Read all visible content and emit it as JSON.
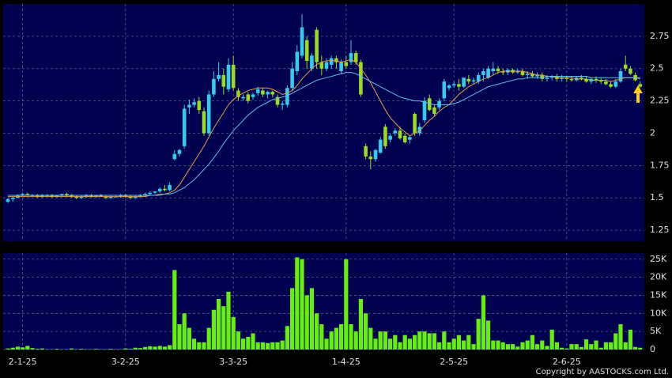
{
  "chart_data": {
    "type": "candlestick",
    "categories": [
      null,
      null,
      null,
      "2-1-25",
      null,
      null,
      null,
      null,
      null,
      null,
      null,
      null,
      null,
      null,
      null,
      null,
      null,
      null,
      null,
      null,
      null,
      null,
      null,
      null,
      "3-2-25",
      null,
      null,
      null,
      null,
      null,
      null,
      null,
      null,
      null,
      null,
      null,
      null,
      null,
      null,
      null,
      null,
      null,
      null,
      null,
      null,
      null,
      "3-3-25",
      null,
      null,
      null,
      null,
      null,
      null,
      null,
      null,
      null,
      null,
      null,
      null,
      null,
      null,
      null,
      null,
      null,
      null,
      null,
      null,
      null,
      null,
      "1-4-25",
      null,
      null,
      null,
      null,
      null,
      null,
      null,
      null,
      null,
      null,
      null,
      null,
      null,
      null,
      null,
      null,
      null,
      null,
      null,
      null,
      null,
      "2-5-25",
      null,
      null,
      null,
      null,
      null,
      null,
      null,
      null,
      null,
      null,
      null,
      null,
      null,
      null,
      null,
      null,
      null,
      null,
      null,
      null,
      null,
      null,
      "2-6-25",
      null,
      null,
      null,
      null,
      null,
      null,
      null,
      null,
      null,
      null,
      null,
      null,
      null,
      null,
      null
    ],
    "open": [
      1.47,
      1.49,
      1.5,
      1.52,
      1.53,
      1.52,
      1.52,
      1.51,
      1.52,
      1.52,
      1.51,
      1.52,
      1.53,
      1.52,
      1.51,
      1.5,
      1.51,
      1.52,
      1.51,
      1.52,
      1.51,
      1.5,
      1.51,
      1.51,
      1.52,
      1.51,
      1.5,
      1.51,
      1.52,
      1.53,
      1.54,
      1.55,
      1.57,
      1.56,
      1.8,
      1.84,
      1.9,
      2.2,
      2.22,
      2.25,
      2.17,
      2.0,
      2.3,
      2.42,
      2.45,
      2.34,
      2.53,
      2.33,
      2.27,
      2.3,
      2.28,
      2.31,
      2.33,
      2.3,
      2.32,
      2.28,
      2.22,
      2.22,
      2.35,
      2.48,
      2.6,
      2.72,
      2.5,
      2.8,
      2.55,
      2.5,
      2.53,
      2.58,
      2.48,
      2.55,
      2.55,
      2.62,
      2.55,
      1.9,
      1.82,
      1.8,
      1.85,
      2.05,
      1.95,
      2.0,
      2.02,
      1.98,
      1.95,
      2.15,
      2.0,
      2.1,
      2.27,
      2.2,
      2.2,
      2.27,
      2.35,
      2.37,
      2.38,
      2.36,
      2.42,
      2.4,
      2.4,
      2.45,
      2.43,
      2.48,
      2.5,
      2.48,
      2.47,
      2.49,
      2.47,
      2.48,
      2.45,
      2.46,
      2.44,
      2.45,
      2.42,
      2.43,
      2.44,
      2.42,
      2.43,
      2.42,
      2.41,
      2.43,
      2.42,
      2.4,
      2.42,
      2.41,
      2.4,
      2.38,
      2.36,
      2.4,
      2.53,
      2.5,
      2.45,
      2.38
    ],
    "high": [
      1.5,
      1.51,
      1.53,
      1.54,
      1.54,
      1.53,
      1.53,
      1.53,
      1.53,
      1.53,
      1.52,
      1.53,
      1.54,
      1.53,
      1.52,
      1.52,
      1.53,
      1.53,
      1.52,
      1.53,
      1.52,
      1.52,
      1.52,
      1.53,
      1.53,
      1.52,
      1.52,
      1.53,
      1.54,
      1.55,
      1.55,
      1.58,
      1.6,
      1.62,
      1.87,
      1.88,
      2.22,
      2.26,
      2.27,
      2.28,
      2.2,
      2.33,
      2.48,
      2.55,
      2.5,
      2.58,
      2.6,
      2.35,
      2.3,
      2.32,
      2.31,
      2.36,
      2.35,
      2.33,
      2.33,
      2.3,
      2.25,
      2.37,
      2.55,
      2.68,
      2.92,
      2.75,
      2.62,
      2.82,
      2.6,
      2.58,
      2.6,
      2.6,
      2.57,
      2.6,
      2.72,
      2.64,
      2.57,
      1.92,
      1.86,
      1.88,
      1.97,
      2.07,
      2.0,
      2.04,
      2.05,
      2.0,
      1.98,
      2.16,
      2.08,
      2.28,
      2.3,
      2.22,
      2.27,
      2.42,
      2.38,
      2.4,
      2.42,
      2.43,
      2.45,
      2.43,
      2.47,
      2.5,
      2.52,
      2.55,
      2.52,
      2.5,
      2.5,
      2.5,
      2.5,
      2.5,
      2.48,
      2.48,
      2.47,
      2.47,
      2.45,
      2.45,
      2.46,
      2.45,
      2.44,
      2.44,
      2.44,
      2.45,
      2.44,
      2.43,
      2.44,
      2.43,
      2.42,
      2.4,
      2.42,
      2.5,
      2.6,
      2.52,
      2.47,
      2.4
    ],
    "low": [
      1.46,
      1.47,
      1.5,
      1.51,
      1.52,
      1.51,
      1.5,
      1.5,
      1.51,
      1.5,
      1.5,
      1.51,
      1.51,
      1.5,
      1.49,
      1.49,
      1.5,
      1.5,
      1.5,
      1.51,
      1.49,
      1.49,
      1.5,
      1.5,
      1.5,
      1.49,
      1.49,
      1.5,
      1.51,
      1.52,
      1.53,
      1.54,
      1.55,
      1.55,
      1.79,
      1.82,
      1.88,
      2.15,
      2.2,
      2.15,
      1.98,
      1.98,
      2.28,
      2.4,
      2.3,
      2.32,
      2.33,
      2.25,
      2.25,
      2.23,
      2.26,
      2.29,
      2.28,
      2.27,
      2.28,
      2.2,
      2.18,
      2.2,
      2.33,
      2.45,
      2.58,
      2.5,
      2.48,
      2.5,
      2.45,
      2.48,
      2.5,
      2.5,
      2.46,
      2.5,
      2.53,
      2.53,
      2.28,
      1.8,
      1.72,
      1.78,
      1.84,
      1.88,
      1.93,
      1.98,
      1.95,
      1.92,
      1.92,
      1.98,
      1.98,
      2.08,
      2.17,
      2.13,
      2.18,
      2.25,
      2.33,
      2.35,
      2.33,
      2.35,
      2.38,
      2.38,
      2.38,
      2.4,
      2.42,
      2.45,
      2.46,
      2.45,
      2.45,
      2.46,
      2.46,
      2.44,
      2.42,
      2.43,
      2.42,
      2.4,
      2.4,
      2.41,
      2.4,
      2.4,
      2.4,
      2.4,
      2.4,
      2.41,
      2.39,
      2.38,
      2.39,
      2.38,
      2.37,
      2.35,
      2.35,
      2.39,
      2.48,
      2.45,
      2.4,
      2.35
    ],
    "close": [
      1.49,
      1.5,
      1.52,
      1.53,
      1.52,
      1.52,
      1.51,
      1.52,
      1.52,
      1.51,
      1.52,
      1.53,
      1.52,
      1.51,
      1.5,
      1.51,
      1.52,
      1.51,
      1.52,
      1.51,
      1.5,
      1.51,
      1.51,
      1.52,
      1.51,
      1.5,
      1.51,
      1.52,
      1.53,
      1.54,
      1.55,
      1.57,
      1.56,
      1.6,
      1.84,
      1.87,
      2.19,
      2.22,
      2.24,
      2.18,
      2.0,
      2.3,
      2.42,
      2.45,
      2.36,
      2.53,
      2.35,
      2.28,
      2.28,
      2.25,
      2.3,
      2.34,
      2.3,
      2.32,
      2.3,
      2.22,
      2.23,
      2.35,
      2.5,
      2.63,
      2.82,
      2.56,
      2.6,
      2.55,
      2.5,
      2.55,
      2.58,
      2.55,
      2.55,
      2.52,
      2.62,
      2.55,
      2.3,
      1.82,
      1.8,
      1.87,
      1.95,
      1.9,
      1.98,
      2.02,
      1.96,
      1.93,
      1.97,
      2.0,
      2.05,
      2.25,
      2.18,
      2.15,
      2.25,
      2.4,
      2.37,
      2.38,
      2.36,
      2.43,
      2.4,
      2.41,
      2.45,
      2.48,
      2.5,
      2.5,
      2.48,
      2.47,
      2.49,
      2.47,
      2.48,
      2.45,
      2.46,
      2.44,
      2.45,
      2.42,
      2.43,
      2.44,
      2.42,
      2.43,
      2.42,
      2.41,
      2.43,
      2.42,
      2.4,
      2.42,
      2.41,
      2.4,
      2.38,
      2.36,
      2.4,
      2.48,
      2.5,
      2.46,
      2.41,
      2.36
    ],
    "up_color": "#33ccee",
    "down_color": "#99dd22",
    "ylim": [
      1.165,
      3.0
    ],
    "yticks": [
      1.25,
      1.5,
      1.75,
      2,
      2.25,
      2.5,
      2.75
    ],
    "grid": true,
    "lines": [
      {
        "color": "#e8a040",
        "values": [
          1.51,
          1.51,
          1.51,
          1.51,
          1.51,
          1.51,
          1.51,
          1.51,
          1.51,
          1.51,
          1.51,
          1.51,
          1.51,
          1.51,
          1.51,
          1.51,
          1.51,
          1.51,
          1.51,
          1.51,
          1.51,
          1.51,
          1.51,
          1.51,
          1.51,
          1.51,
          1.51,
          1.51,
          1.51,
          1.52,
          1.52,
          1.53,
          1.53,
          1.54,
          1.56,
          1.6,
          1.66,
          1.72,
          1.78,
          1.84,
          1.9,
          1.97,
          2.04,
          2.1,
          2.16,
          2.22,
          2.26,
          2.29,
          2.31,
          2.33,
          2.34,
          2.35,
          2.35,
          2.35,
          2.34,
          2.32,
          2.3,
          2.31,
          2.33,
          2.37,
          2.42,
          2.46,
          2.5,
          2.53,
          2.55,
          2.56,
          2.56,
          2.56,
          2.55,
          2.56,
          2.57,
          2.55,
          2.5,
          2.45,
          2.39,
          2.32,
          2.25,
          2.18,
          2.12,
          2.08,
          2.04,
          2.01,
          1.98,
          2.0,
          2.02,
          2.06,
          2.1,
          2.13,
          2.17,
          2.2,
          2.22,
          2.26,
          2.3,
          2.33,
          2.36,
          2.38,
          2.4,
          2.42,
          2.43,
          2.45,
          2.47,
          2.48,
          2.48,
          2.48,
          2.48,
          2.48,
          2.47,
          2.46,
          2.45,
          2.45,
          2.44,
          2.44,
          2.43,
          2.43,
          2.43,
          2.43,
          2.42,
          2.42,
          2.42,
          2.41,
          2.41,
          2.41,
          2.41,
          2.4,
          2.41,
          2.42,
          2.43,
          2.43,
          2.43,
          2.42
        ]
      },
      {
        "color": "#66bbee",
        "values": [
          1.52,
          1.52,
          1.52,
          1.52,
          1.52,
          1.52,
          1.52,
          1.52,
          1.52,
          1.52,
          1.52,
          1.52,
          1.52,
          1.52,
          1.52,
          1.52,
          1.52,
          1.52,
          1.52,
          1.52,
          1.52,
          1.52,
          1.52,
          1.52,
          1.52,
          1.52,
          1.52,
          1.52,
          1.52,
          1.52,
          1.52,
          1.52,
          1.53,
          1.53,
          1.54,
          1.56,
          1.58,
          1.61,
          1.64,
          1.68,
          1.72,
          1.76,
          1.81,
          1.86,
          1.92,
          1.97,
          2.02,
          2.06,
          2.1,
          2.14,
          2.17,
          2.2,
          2.22,
          2.24,
          2.26,
          2.27,
          2.28,
          2.29,
          2.31,
          2.33,
          2.35,
          2.37,
          2.39,
          2.41,
          2.42,
          2.43,
          2.44,
          2.45,
          2.46,
          2.47,
          2.47,
          2.46,
          2.44,
          2.42,
          2.4,
          2.38,
          2.36,
          2.34,
          2.32,
          2.3,
          2.28,
          2.27,
          2.26,
          2.25,
          2.25,
          2.24,
          2.23,
          2.22,
          2.22,
          2.22,
          2.22,
          2.23,
          2.24,
          2.26,
          2.28,
          2.3,
          2.32,
          2.34,
          2.36,
          2.37,
          2.38,
          2.39,
          2.4,
          2.41,
          2.42,
          2.42,
          2.43,
          2.43,
          2.43,
          2.43,
          2.44,
          2.44,
          2.44,
          2.44,
          2.44,
          2.44,
          2.44,
          2.44,
          2.44,
          2.43,
          2.43,
          2.43,
          2.43,
          2.43,
          2.43,
          2.43,
          2.43,
          2.43,
          2.43,
          2.43
        ]
      }
    ],
    "volume": {
      "color": "#66ee11",
      "values": [
        300,
        500,
        800,
        600,
        1000,
        400,
        200,
        300,
        100,
        100,
        200,
        100,
        100,
        300,
        100,
        200,
        100,
        100,
        200,
        100,
        100,
        200,
        100,
        100,
        300,
        200,
        500,
        400,
        700,
        900,
        800,
        1000,
        800,
        1200,
        22000,
        7000,
        10000,
        6000,
        3000,
        2000,
        2000,
        6000,
        11000,
        14000,
        12000,
        16000,
        9000,
        5000,
        3000,
        3500,
        4500,
        2000,
        2000,
        1800,
        2000,
        2000,
        2500,
        6500,
        17000,
        25500,
        25000,
        15000,
        17000,
        10000,
        7000,
        3000,
        5000,
        6000,
        7000,
        25000,
        7000,
        5000,
        14000,
        10000,
        6000,
        3000,
        5000,
        5000,
        3000,
        4000,
        2000,
        4000,
        3000,
        4000,
        5000,
        5000,
        4500,
        4500,
        2000,
        5000,
        2000,
        3000,
        4000,
        2500,
        4000,
        1500,
        8500,
        15000,
        8000,
        2500,
        2500,
        2000,
        1500,
        1500,
        800,
        2000,
        2500,
        4000,
        1500,
        2500,
        1000,
        5500,
        2000,
        500,
        300,
        1500,
        1500,
        700,
        2800,
        1500,
        2500,
        500,
        2000,
        2000,
        4500,
        7000,
        2000,
        5500,
        700,
        500
      ],
      "ylim": [
        0,
        26700
      ],
      "yticks": [
        0,
        {
          "value": 5000,
          "label": "5K"
        },
        {
          "value": 10000,
          "label": "10K"
        },
        {
          "value": 15000,
          "label": "15K"
        },
        {
          "value": 20000,
          "label": "20K"
        },
        {
          "value": 25000,
          "label": "25K"
        }
      ]
    },
    "copyright": "Copyright by AASTOCKS.com Ltd."
  }
}
